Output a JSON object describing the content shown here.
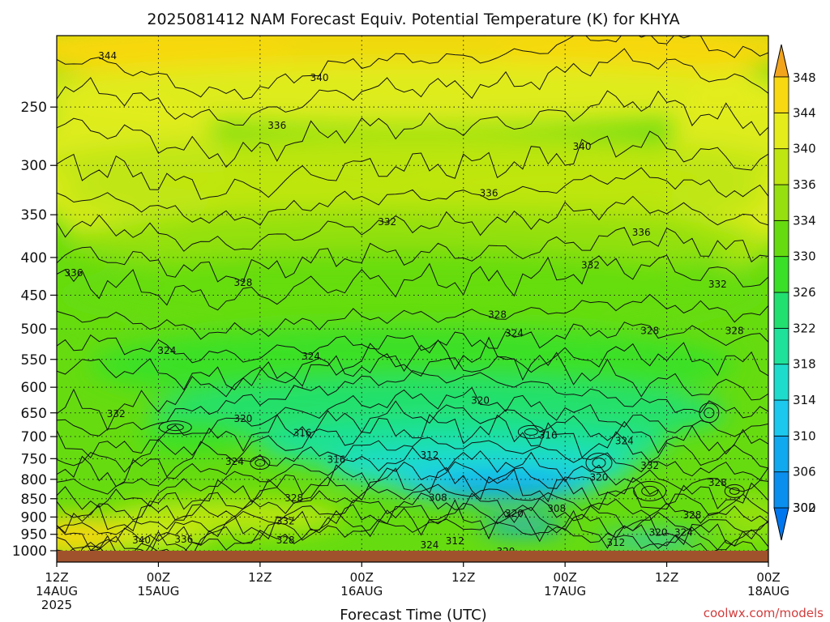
{
  "chart_data": {
    "type": "heatmap",
    "title": "2025081412 NAM Forecast Equiv. Potential Temperature (K) for KHYA",
    "xlabel": "Forecast Time (UTC)",
    "ylabel": "",
    "credit": "coolwx.com/models",
    "x_ticks": [
      {
        "hour": 0,
        "line1": "12Z",
        "line2": "14AUG",
        "line3": "2025"
      },
      {
        "hour": 12,
        "line1": "00Z",
        "line2": "15AUG",
        "line3": ""
      },
      {
        "hour": 24,
        "line1": "12Z",
        "line2": "",
        "line3": ""
      },
      {
        "hour": 36,
        "line1": "00Z",
        "line2": "16AUG",
        "line3": ""
      },
      {
        "hour": 48,
        "line1": "12Z",
        "line2": "",
        "line3": ""
      },
      {
        "hour": 60,
        "line1": "00Z",
        "line2": "17AUG",
        "line3": ""
      },
      {
        "hour": 72,
        "line1": "12Z",
        "line2": "",
        "line3": ""
      },
      {
        "hour": 84,
        "line1": "00Z",
        "line2": "18AUG",
        "line3": ""
      }
    ],
    "x_range_hours": [
      0,
      84
    ],
    "y_range_hpa": [
      200,
      1000
    ],
    "y_ticks": [
      250,
      300,
      350,
      400,
      450,
      500,
      550,
      600,
      650,
      700,
      750,
      800,
      850,
      900,
      950,
      1000
    ],
    "grid": true,
    "colorbar": {
      "levels": [
        300,
        302,
        306,
        310,
        314,
        318,
        322,
        326,
        330,
        334,
        336,
        340,
        344,
        348
      ],
      "labels": [
        300,
        302,
        306,
        310,
        314,
        318,
        322,
        326,
        330,
        334,
        336,
        340,
        344,
        348
      ],
      "colors": [
        "#0077ee",
        "#0a8fee",
        "#10a8ee",
        "#1cc8ee",
        "#1edccc",
        "#1ee29a",
        "#22e070",
        "#3ae028",
        "#66dc10",
        "#96e010",
        "#c0e612",
        "#e4ec1c",
        "#f8d810",
        "#f2a41c"
      ],
      "placement": "right"
    },
    "contour_labels": [
      {
        "value": "344",
        "hour": 6,
        "p": 213
      },
      {
        "value": "340",
        "hour": 31,
        "p": 228
      },
      {
        "value": "336",
        "hour": 26,
        "p": 265
      },
      {
        "value": "340",
        "hour": 62,
        "p": 283
      },
      {
        "value": "336",
        "hour": 51,
        "p": 327
      },
      {
        "value": "332",
        "hour": 39,
        "p": 358
      },
      {
        "value": "336",
        "hour": 69,
        "p": 370
      },
      {
        "value": "336",
        "hour": 2,
        "p": 420
      },
      {
        "value": "328",
        "hour": 22,
        "p": 433
      },
      {
        "value": "332",
        "hour": 63,
        "p": 410
      },
      {
        "value": "332",
        "hour": 78,
        "p": 435
      },
      {
        "value": "328",
        "hour": 52,
        "p": 478
      },
      {
        "value": "324",
        "hour": 54,
        "p": 507
      },
      {
        "value": "328",
        "hour": 70,
        "p": 503
      },
      {
        "value": "328",
        "hour": 80,
        "p": 503
      },
      {
        "value": "324",
        "hour": 13,
        "p": 535
      },
      {
        "value": "324",
        "hour": 30,
        "p": 545
      },
      {
        "value": "320",
        "hour": 50,
        "p": 625
      },
      {
        "value": "332",
        "hour": 7,
        "p": 652
      },
      {
        "value": "320",
        "hour": 22,
        "p": 662
      },
      {
        "value": "316",
        "hour": 29,
        "p": 692
      },
      {
        "value": "316",
        "hour": 58,
        "p": 697
      },
      {
        "value": "324",
        "hour": 67,
        "p": 710
      },
      {
        "value": "312",
        "hour": 44,
        "p": 742
      },
      {
        "value": "316",
        "hour": 33,
        "p": 752
      },
      {
        "value": "324",
        "hour": 21,
        "p": 757
      },
      {
        "value": "332",
        "hour": 70,
        "p": 767
      },
      {
        "value": "320",
        "hour": 64,
        "p": 795
      },
      {
        "value": "328",
        "hour": 78,
        "p": 808
      },
      {
        "value": "328",
        "hour": 28,
        "p": 848
      },
      {
        "value": "308",
        "hour": 45,
        "p": 847
      },
      {
        "value": "308",
        "hour": 59,
        "p": 877
      },
      {
        "value": "320",
        "hour": 54,
        "p": 890
      },
      {
        "value": "328",
        "hour": 75,
        "p": 895
      },
      {
        "value": "332",
        "hour": 27,
        "p": 912
      },
      {
        "value": "320",
        "hour": 71,
        "p": 945
      },
      {
        "value": "324",
        "hour": 74,
        "p": 945
      },
      {
        "value": "340",
        "hour": 10,
        "p": 968
      },
      {
        "value": "336",
        "hour": 15,
        "p": 965
      },
      {
        "value": "328",
        "hour": 27,
        "p": 968
      },
      {
        "value": "312",
        "hour": 47,
        "p": 970
      },
      {
        "value": "324",
        "hour": 44,
        "p": 982
      },
      {
        "value": "312",
        "hour": 66,
        "p": 975
      },
      {
        "value": "320",
        "hour": 53,
        "p": 1003
      }
    ]
  }
}
